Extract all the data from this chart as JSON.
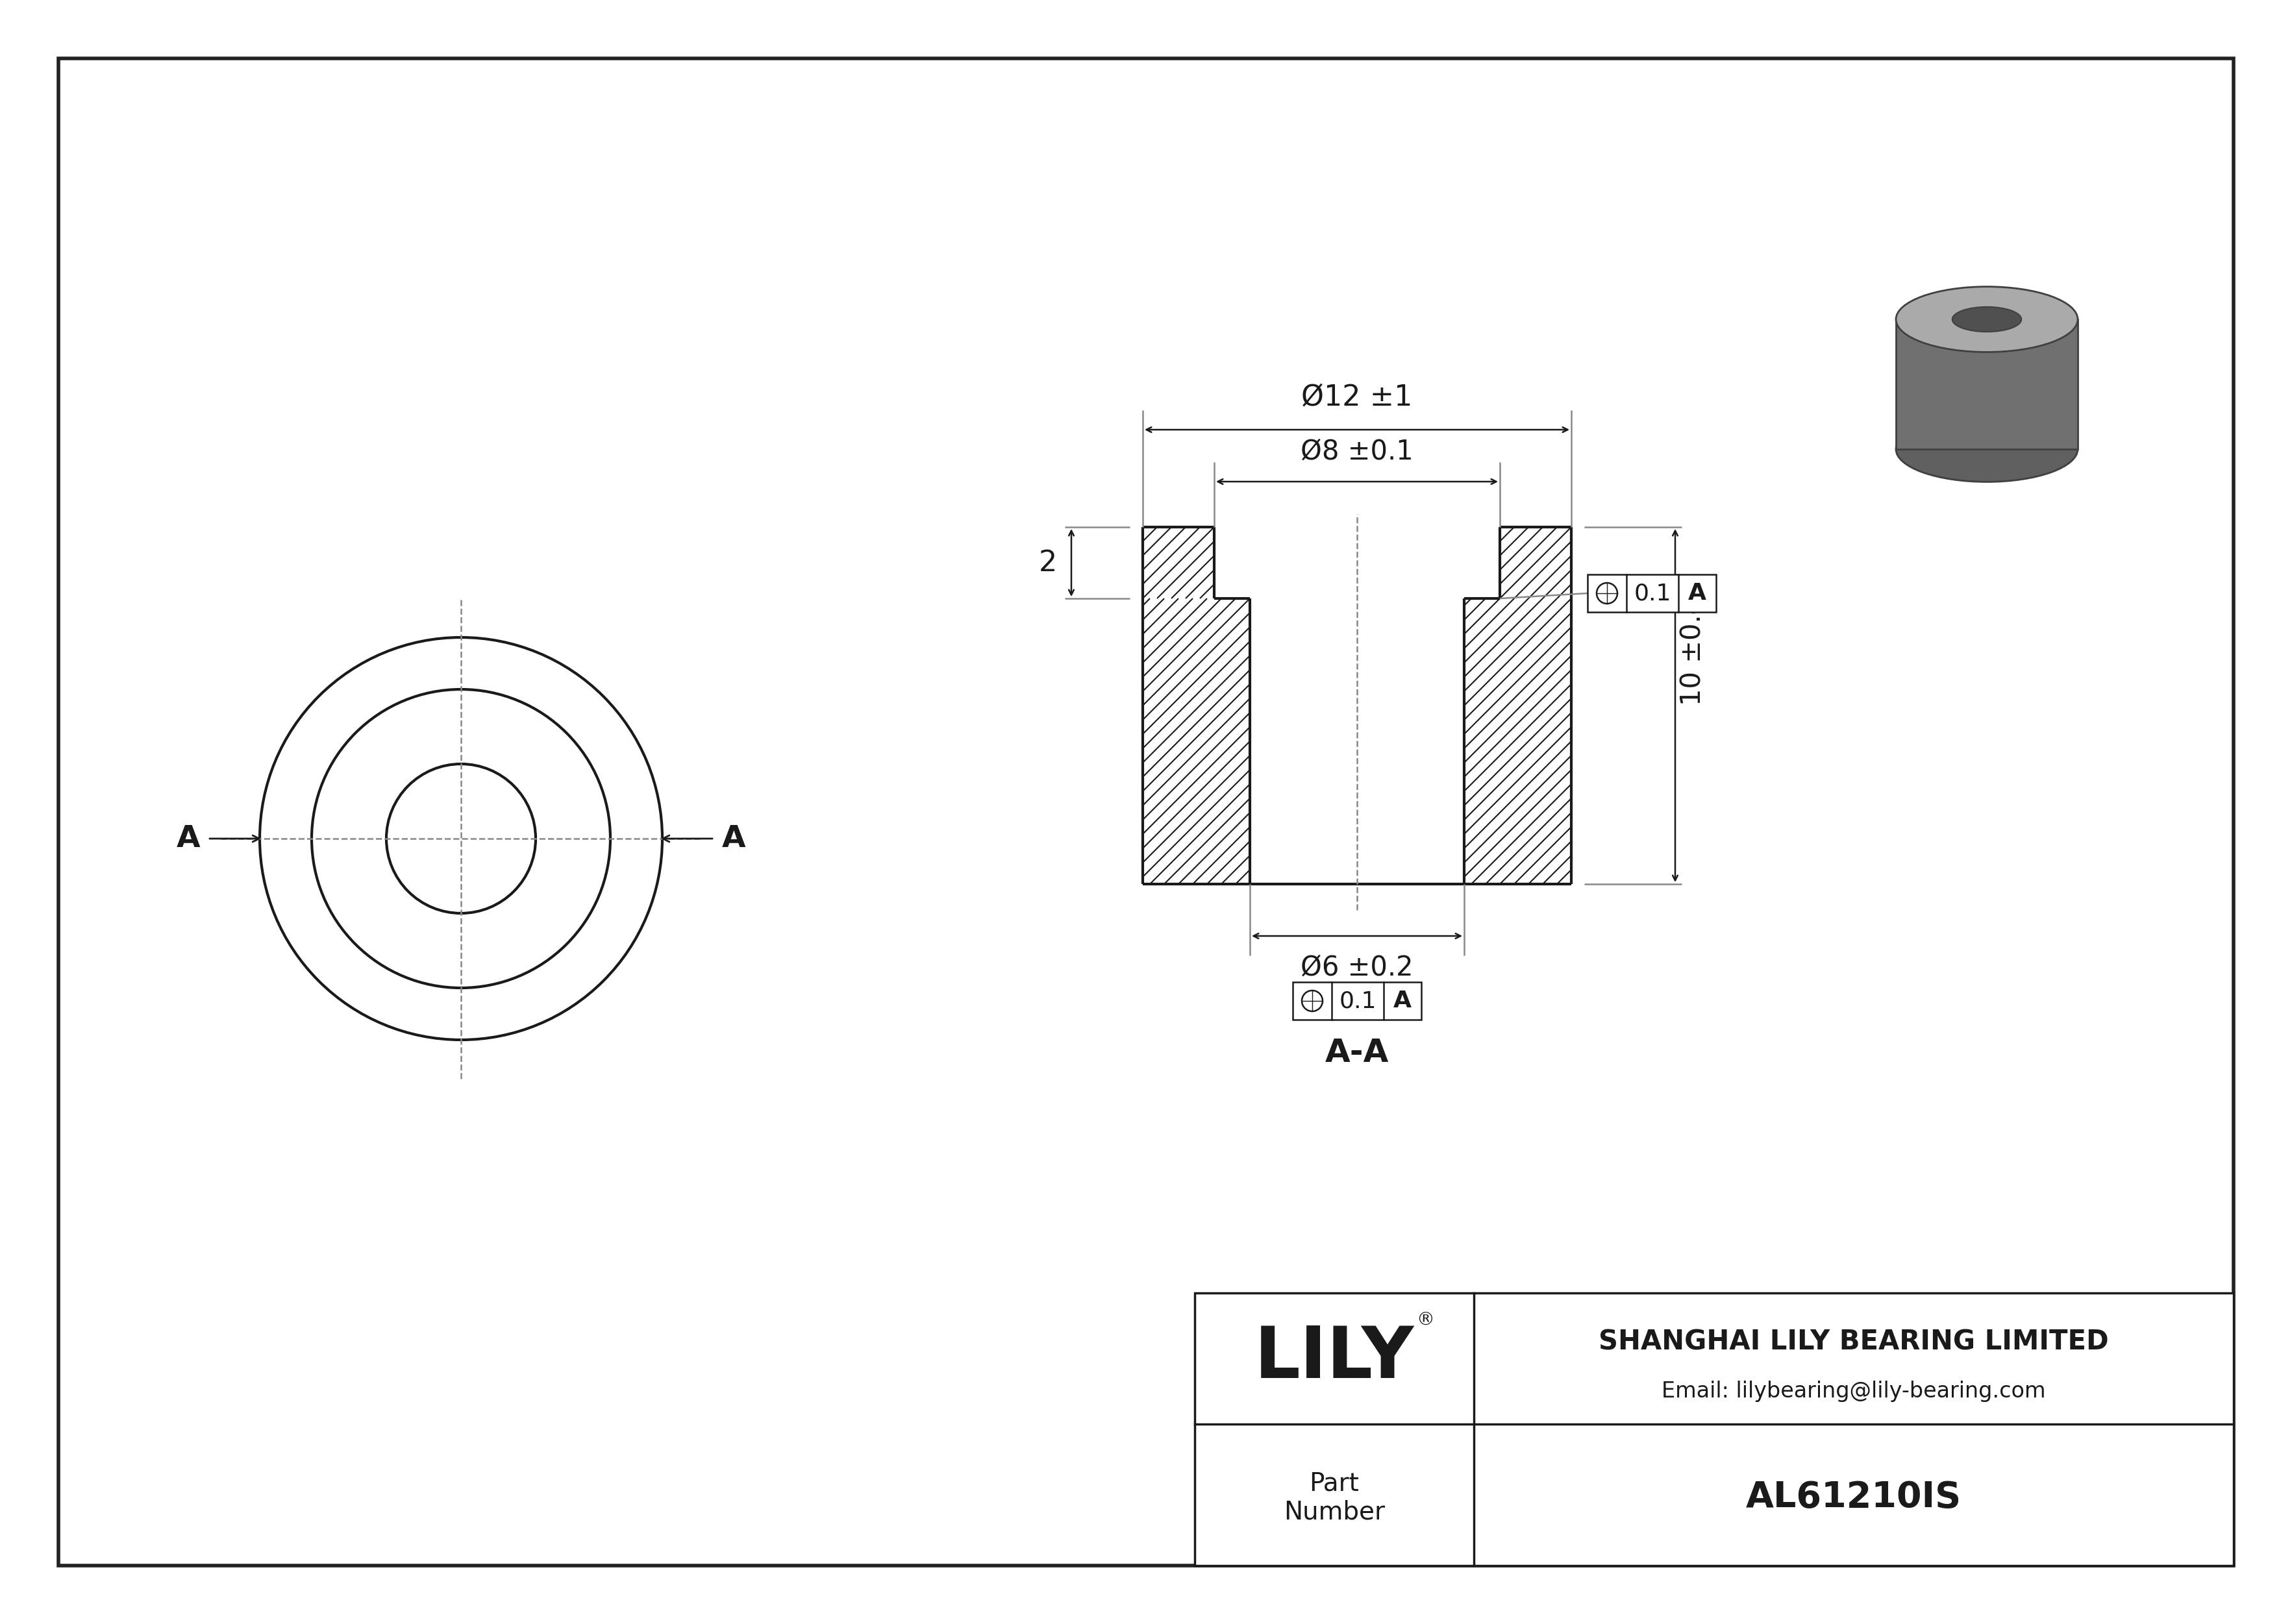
{
  "bg_color": "#ffffff",
  "line_color": "#1a1a1a",
  "company": "SHANGHAI LILY BEARING LIMITED",
  "email": "Email: lilybearing@lily-bearing.com",
  "part_label": "Part\nNumber",
  "part_number": "AL61210IS",
  "lily_text": "LILY",
  "dim_od": "Ø12 ±1",
  "dim_bore_top": "Ø8 ±0.1",
  "dim_height": "10 ±0.4",
  "dim_flange": "2",
  "dim_bore_bot": "Ø6 ±0.2",
  "tol_val": "0.1",
  "tol_ref": "A",
  "section_label": "A-A",
  "arrow_label": "A",
  "centerline_color": "#888888",
  "dim_color": "#1a1a1a"
}
